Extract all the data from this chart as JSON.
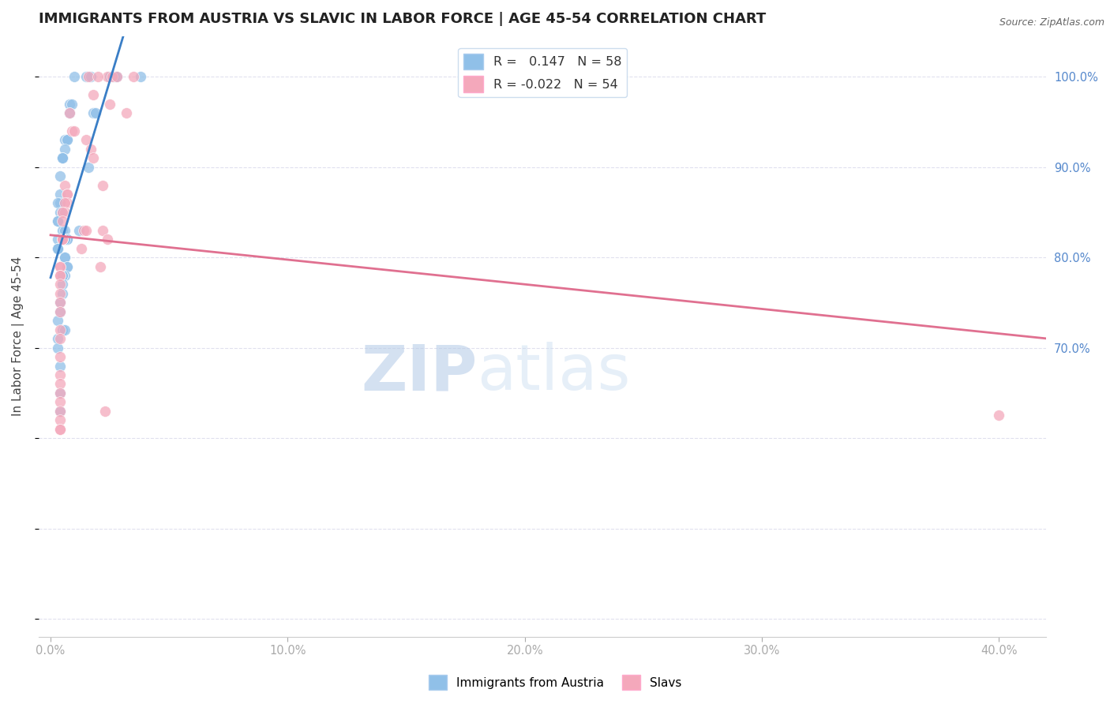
{
  "title": "IMMIGRANTS FROM AUSTRIA VS SLAVIC IN LABOR FORCE | AGE 45-54 CORRELATION CHART",
  "source": "Source: ZipAtlas.com",
  "ylabel": "In Labor Force | Age 45-54",
  "xlim": [
    -0.005,
    0.42
  ],
  "ylim": [
    0.38,
    1.045
  ],
  "x_ticks": [
    0.0,
    0.1,
    0.2,
    0.3,
    0.4
  ],
  "x_tick_labels": [
    "0.0%",
    "10.0%",
    "20.0%",
    "30.0%",
    "40.0%"
  ],
  "right_y_ticks": [
    0.7,
    0.8,
    0.9,
    1.0
  ],
  "right_y_tick_labels": [
    "70.0%",
    "80.0%",
    "90.0%",
    "100.0%"
  ],
  "austria_color": "#90C0E8",
  "slavic_color": "#F4A8BB",
  "austria_R": 0.147,
  "austria_N": 58,
  "slavic_R": -0.022,
  "slavic_N": 54,
  "trend_austria_color": "#3A7EC6",
  "trend_slavic_color": "#E07090",
  "trend_dashed_color": "#AAAACC",
  "austria_scatter_x": [
    0.01,
    0.015,
    0.017,
    0.025,
    0.027,
    0.028,
    0.038,
    0.008,
    0.009,
    0.008,
    0.018,
    0.019,
    0.006,
    0.007,
    0.007,
    0.006,
    0.005,
    0.005,
    0.005,
    0.016,
    0.004,
    0.004,
    0.004,
    0.003,
    0.004,
    0.005,
    0.003,
    0.003,
    0.005,
    0.006,
    0.012,
    0.007,
    0.007,
    0.003,
    0.006,
    0.003,
    0.003,
    0.003,
    0.003,
    0.006,
    0.006,
    0.007,
    0.007,
    0.006,
    0.005,
    0.005,
    0.005,
    0.005,
    0.004,
    0.004,
    0.003,
    0.005,
    0.006,
    0.003,
    0.003,
    0.004,
    0.004,
    0.004
  ],
  "austria_scatter_y": [
    1.0,
    1.0,
    1.0,
    1.0,
    1.0,
    1.0,
    1.0,
    0.97,
    0.97,
    0.96,
    0.96,
    0.96,
    0.93,
    0.93,
    0.93,
    0.92,
    0.91,
    0.91,
    0.91,
    0.9,
    0.89,
    0.87,
    0.86,
    0.86,
    0.85,
    0.85,
    0.84,
    0.84,
    0.83,
    0.83,
    0.83,
    0.82,
    0.82,
    0.82,
    0.82,
    0.81,
    0.81,
    0.81,
    0.81,
    0.8,
    0.8,
    0.79,
    0.79,
    0.78,
    0.78,
    0.78,
    0.77,
    0.76,
    0.75,
    0.74,
    0.73,
    0.72,
    0.72,
    0.71,
    0.7,
    0.68,
    0.65,
    0.63
  ],
  "slavic_scatter_x": [
    0.016,
    0.024,
    0.02,
    0.026,
    0.028,
    0.035,
    0.018,
    0.025,
    0.032,
    0.008,
    0.009,
    0.01,
    0.015,
    0.017,
    0.018,
    0.022,
    0.006,
    0.007,
    0.007,
    0.007,
    0.006,
    0.006,
    0.005,
    0.005,
    0.014,
    0.015,
    0.022,
    0.024,
    0.005,
    0.005,
    0.005,
    0.013,
    0.021,
    0.004,
    0.004,
    0.004,
    0.004,
    0.004,
    0.004,
    0.004,
    0.004,
    0.004,
    0.004,
    0.004,
    0.004,
    0.004,
    0.004,
    0.004,
    0.023,
    0.004,
    0.004,
    0.004,
    0.004,
    0.4
  ],
  "slavic_scatter_y": [
    1.0,
    1.0,
    1.0,
    1.0,
    1.0,
    1.0,
    0.98,
    0.97,
    0.96,
    0.96,
    0.94,
    0.94,
    0.93,
    0.92,
    0.91,
    0.88,
    0.88,
    0.87,
    0.87,
    0.86,
    0.86,
    0.85,
    0.85,
    0.84,
    0.83,
    0.83,
    0.83,
    0.82,
    0.82,
    0.82,
    0.82,
    0.81,
    0.79,
    0.79,
    0.79,
    0.78,
    0.78,
    0.77,
    0.76,
    0.75,
    0.74,
    0.72,
    0.71,
    0.69,
    0.67,
    0.66,
    0.65,
    0.64,
    0.63,
    0.63,
    0.62,
    0.61,
    0.61,
    0.625
  ],
  "watermark_zip": "ZIP",
  "watermark_atlas": "atlas",
  "bg_color": "#FFFFFF",
  "grid_color": "#E0E0EE",
  "tick_color": "#5588CC",
  "title_fontsize": 13,
  "axis_fontsize": 11,
  "tick_fontsize": 10.5
}
